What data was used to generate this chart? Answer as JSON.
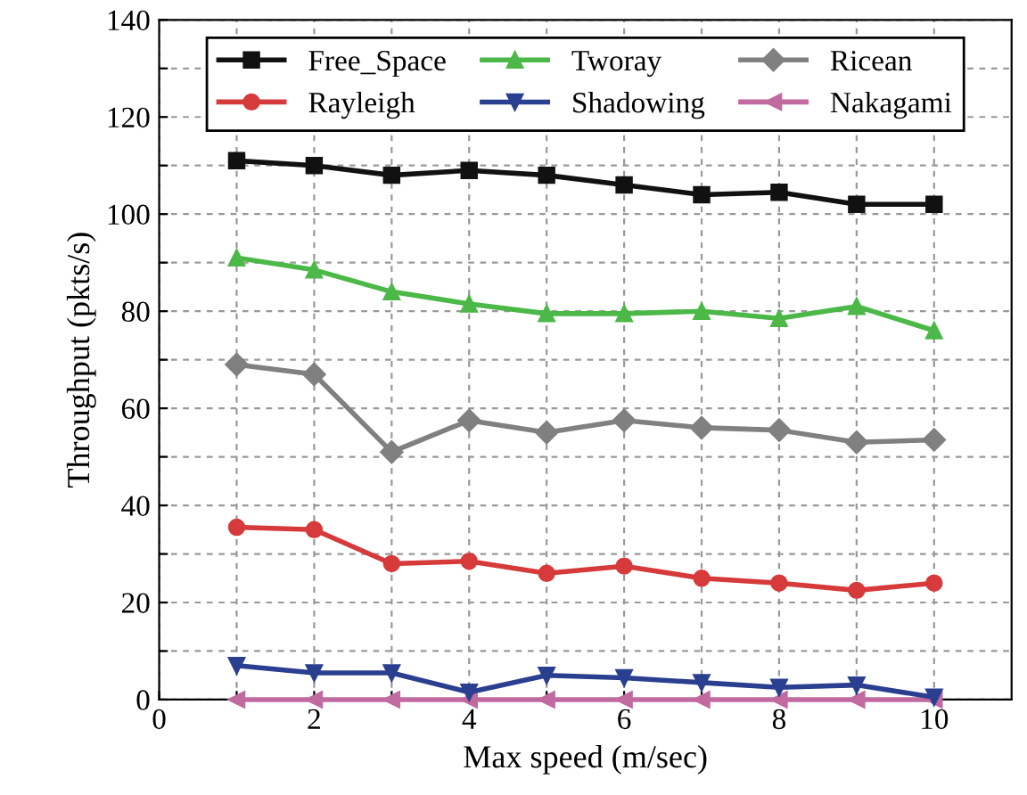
{
  "chart_data": {
    "type": "line",
    "xlabel": "Max speed (m/sec)",
    "ylabel": "Throughput (pkts/s)",
    "x": [
      1,
      2,
      3,
      4,
      5,
      6,
      7,
      8,
      9,
      10
    ],
    "series": [
      {
        "name": "Free_Space",
        "color": "#111111",
        "marker": "square",
        "values": [
          111,
          110,
          108,
          109,
          108,
          106,
          104,
          104.5,
          102,
          102
        ]
      },
      {
        "name": "Rayleigh",
        "color": "#d63a3a",
        "marker": "circle",
        "values": [
          35.5,
          35,
          28,
          28.5,
          26,
          27.5,
          25,
          24,
          22.5,
          24
        ]
      },
      {
        "name": "Tworay",
        "color": "#4cb848",
        "marker": "triangle",
        "values": [
          91,
          88.5,
          84,
          81.5,
          79.5,
          79.5,
          80,
          78.5,
          81,
          76
        ]
      },
      {
        "name": "Shadowing",
        "color": "#2a3f8f",
        "marker": "triangle_down",
        "values": [
          7,
          5.5,
          5.5,
          1.5,
          5,
          4.5,
          3.5,
          2.5,
          3,
          0.5
        ]
      },
      {
        "name": "Ricean",
        "color": "#808080",
        "marker": "diamond",
        "values": [
          69,
          67,
          51,
          57.5,
          55,
          57.5,
          56,
          55.5,
          53,
          53.5
        ]
      },
      {
        "name": "Nakagami",
        "color": "#c06aa0",
        "marker": "triangle_left",
        "values": [
          0,
          0,
          0,
          0,
          0,
          0,
          0,
          0,
          0,
          0
        ]
      }
    ],
    "xlim": [
      0,
      11
    ],
    "ylim": [
      0,
      140
    ],
    "xticks": [
      0,
      {
        "value": 1,
        "label": null
      },
      2,
      {
        "value": 3,
        "label": null
      },
      4,
      {
        "value": 5,
        "label": null
      },
      6,
      {
        "value": 7,
        "label": null
      },
      8,
      {
        "value": 9,
        "label": null
      },
      10
    ],
    "yticks": [
      0,
      {
        "value": 10,
        "label": null
      },
      20,
      {
        "value": 30,
        "label": null
      },
      40,
      {
        "value": 50,
        "label": null
      },
      60,
      {
        "value": 70,
        "label": null
      },
      80,
      {
        "value": 90,
        "label": null
      },
      100,
      {
        "value": 110,
        "label": null
      },
      120,
      {
        "value": 130,
        "label": null
      },
      140
    ],
    "grid": true,
    "legend": "top",
    "line_style": "solid"
  }
}
